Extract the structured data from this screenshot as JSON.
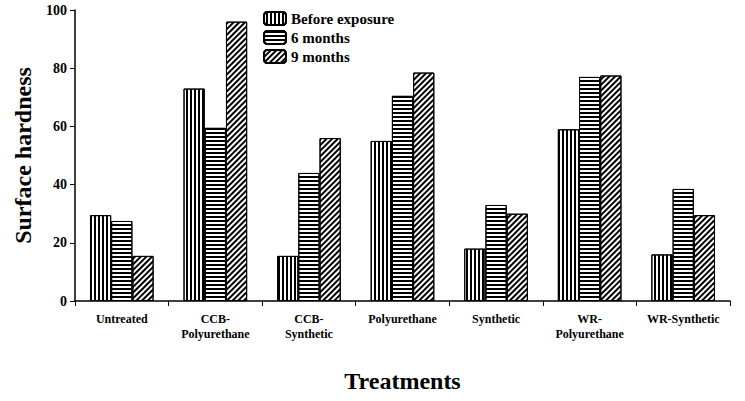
{
  "chart_data": {
    "type": "bar",
    "xlabel": "Treatments",
    "ylabel": "Surface hardness",
    "categories": [
      "Untreated",
      "CCB-\nPolyurethane",
      "CCB-\nSynthetic",
      "Polyurethane",
      "Synthetic",
      "WR-\nPolyurethane",
      "WR-Synthetic"
    ],
    "series": [
      {
        "name": "Before exposure",
        "color": "#000000",
        "marker": "vertical",
        "values": [
          29.5,
          73,
          15.5,
          55,
          18,
          59,
          16
        ]
      },
      {
        "name": "6 months",
        "color": "#000000",
        "marker": "horizontal",
        "values": [
          27.5,
          59.5,
          44,
          70.5,
          33,
          77,
          38.5
        ]
      },
      {
        "name": "9 months",
        "color": "#000000",
        "marker": "diagonal",
        "values": [
          15.5,
          96,
          56,
          78.5,
          30,
          77.5,
          29.5
        ]
      }
    ],
    "ylim": [
      0,
      100
    ],
    "yticks": [
      0,
      20,
      40,
      60,
      80,
      100
    ],
    "grid": false,
    "legend": "top"
  }
}
